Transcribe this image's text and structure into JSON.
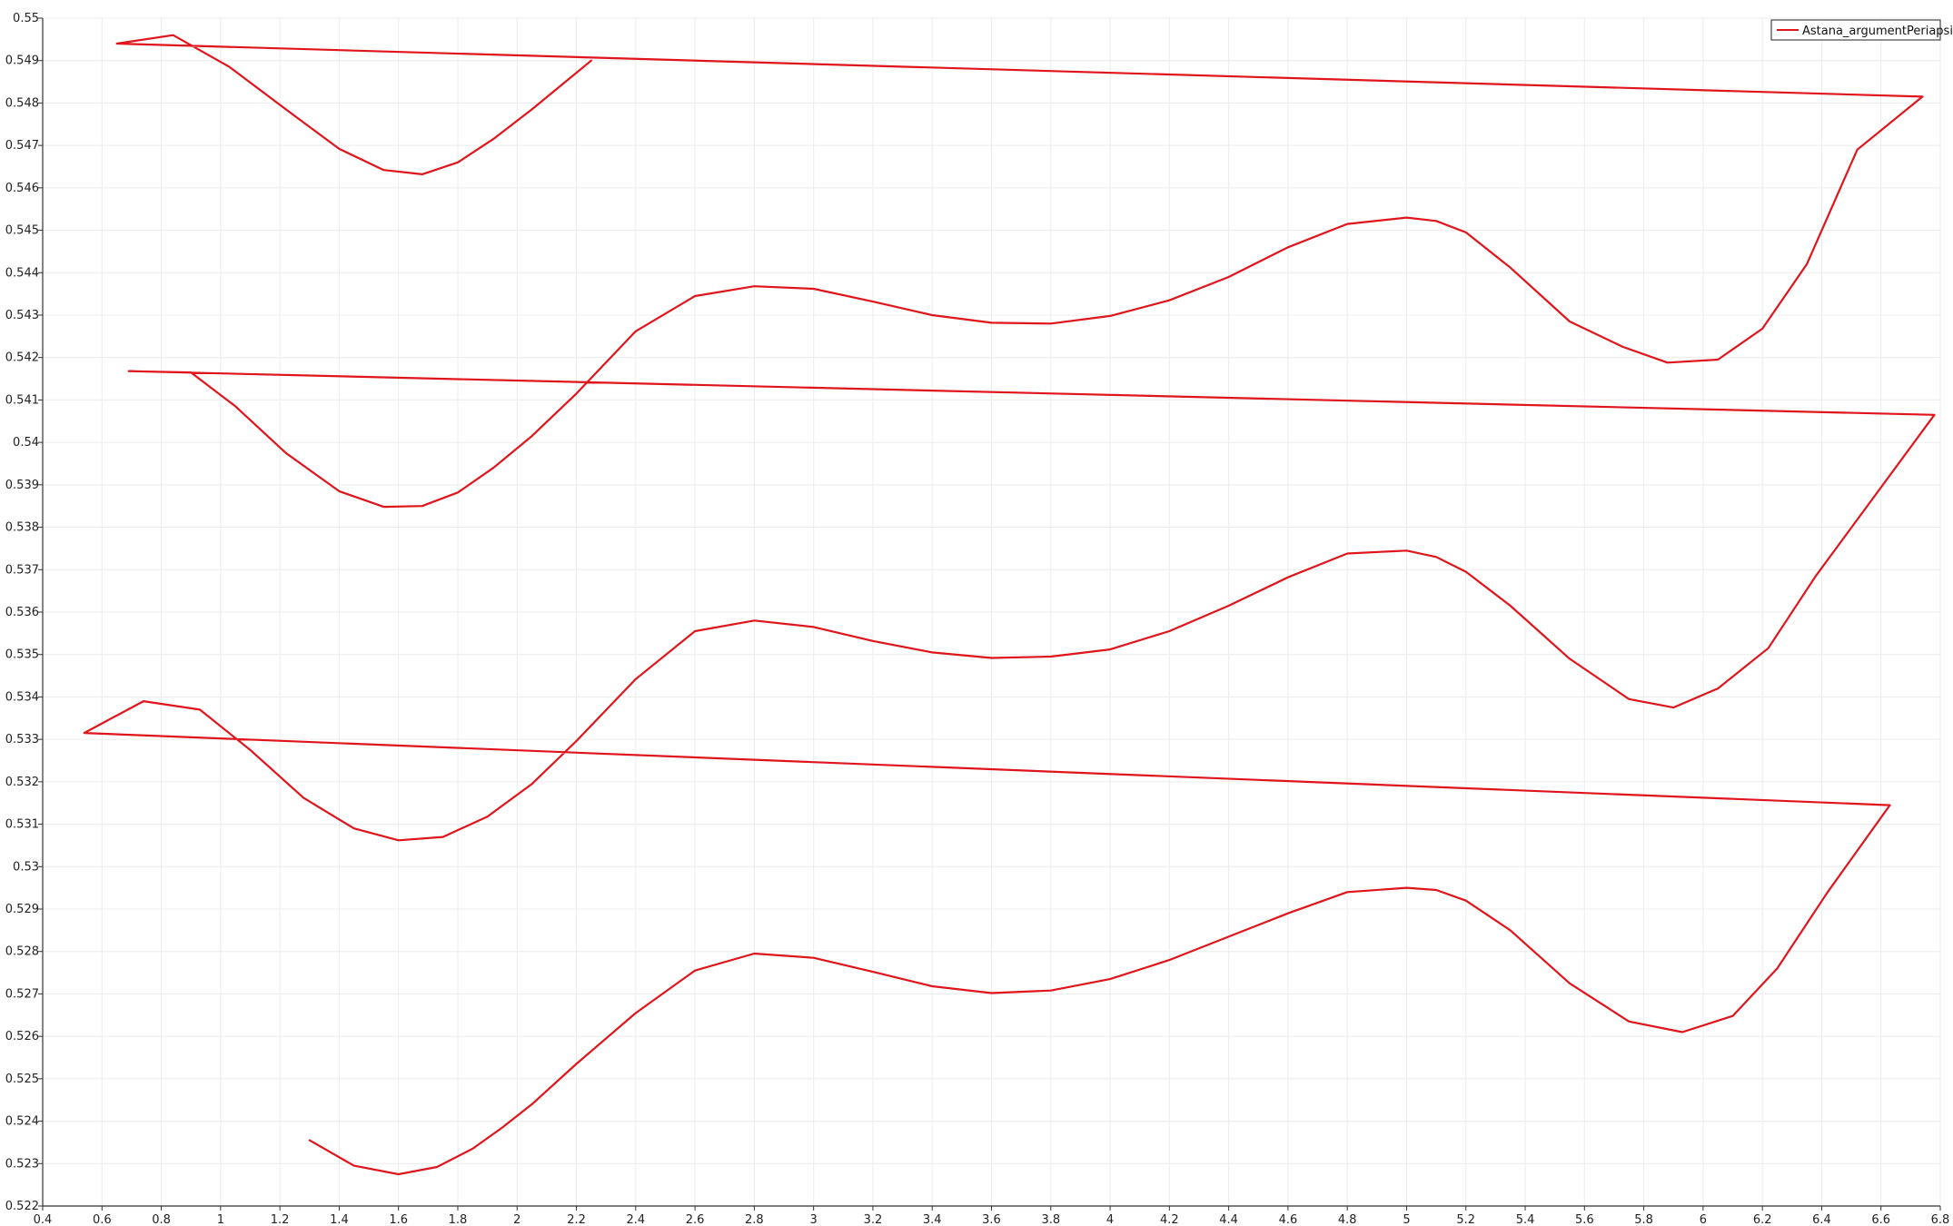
{
  "chart_data": {
    "type": "line",
    "title": "",
    "xlabel": "",
    "ylabel": "",
    "xlim": [
      0.4,
      6.8
    ],
    "ylim": [
      0.522,
      0.55
    ],
    "grid": true,
    "legend": {
      "position": "top-right"
    },
    "x_ticks": [
      "0.4",
      "0.6",
      "0.8",
      "1",
      "1.2",
      "1.4",
      "1.6",
      "1.8",
      "2",
      "2.2",
      "2.4",
      "2.6",
      "2.8",
      "3",
      "3.2",
      "3.4",
      "3.6",
      "3.8",
      "4",
      "4.2",
      "4.4",
      "4.6",
      "4.8",
      "5",
      "5.2",
      "5.4",
      "5.6",
      "5.8",
      "6",
      "6.2",
      "6.4",
      "6.6",
      "6.8"
    ],
    "y_ticks": [
      "0.522",
      "0.523",
      "0.524",
      "0.525",
      "0.526",
      "0.527",
      "0.528",
      "0.529",
      "0.53",
      "0.531",
      "0.532",
      "0.533",
      "0.534",
      "0.535",
      "0.536",
      "0.537",
      "0.538",
      "0.539",
      "0.54",
      "0.541",
      "0.542",
      "0.543",
      "0.544",
      "0.545",
      "0.546",
      "0.547",
      "0.548",
      "0.549",
      "0.55"
    ],
    "colors": {
      "series": "#e0151b",
      "grid": "#ececec",
      "axis": "#333333"
    },
    "series": [
      {
        "name": "Astana_argumentPeriapsis",
        "x": [
          1.3,
          1.45,
          1.6,
          1.73,
          1.85,
          1.95,
          2.05,
          2.2,
          2.4,
          2.6,
          2.8,
          3.0,
          3.2,
          3.4,
          3.6,
          3.8,
          4.0,
          4.2,
          4.4,
          4.6,
          4.8,
          5.0,
          5.1,
          5.2,
          5.35,
          5.55,
          5.75,
          5.93,
          6.1,
          6.25,
          6.42,
          6.63,
          0.54,
          0.74,
          0.93,
          1.1,
          1.28,
          1.45,
          1.6,
          1.75,
          1.9,
          2.05,
          2.2,
          2.4,
          2.6,
          2.8,
          3.0,
          3.2,
          3.4,
          3.6,
          3.8,
          4.0,
          4.2,
          4.4,
          4.6,
          4.8,
          5.0,
          5.1,
          5.2,
          5.35,
          5.55,
          5.75,
          5.9,
          6.05,
          6.22,
          6.38,
          6.78,
          0.69,
          0.9,
          1.05,
          1.22,
          1.4,
          1.55,
          1.68,
          1.8,
          1.92,
          2.05,
          2.2,
          2.4,
          2.6,
          2.8,
          3.0,
          3.2,
          3.4,
          3.6,
          3.8,
          4.0,
          4.2,
          4.4,
          4.6,
          4.8,
          5.0,
          5.1,
          5.2,
          5.35,
          5.55,
          5.73,
          5.88,
          6.05,
          6.2,
          6.35,
          6.52,
          6.74,
          0.65,
          0.84,
          1.03,
          1.22,
          1.4,
          1.55,
          1.68,
          1.8,
          1.92,
          2.05,
          2.25
        ],
        "y": [
          0.52355,
          0.52295,
          0.52275,
          0.52292,
          0.52335,
          0.52385,
          0.5244,
          0.52535,
          0.52655,
          0.52755,
          0.52795,
          0.52785,
          0.52752,
          0.52718,
          0.52702,
          0.52708,
          0.52735,
          0.5278,
          0.52835,
          0.5289,
          0.5294,
          0.5295,
          0.52945,
          0.5292,
          0.5285,
          0.52725,
          0.52635,
          0.5261,
          0.52648,
          0.5276,
          0.5294,
          0.53145,
          0.53315,
          0.5339,
          0.5337,
          0.53275,
          0.53162,
          0.5309,
          0.53062,
          0.5307,
          0.53118,
          0.53195,
          0.53296,
          0.53442,
          0.53555,
          0.5358,
          0.53565,
          0.53532,
          0.53505,
          0.53492,
          0.53495,
          0.53512,
          0.53555,
          0.53615,
          0.53682,
          0.53738,
          0.53745,
          0.5373,
          0.53695,
          0.53615,
          0.5349,
          0.53395,
          0.53375,
          0.5342,
          0.53515,
          0.53685,
          0.54065,
          0.54168,
          0.54165,
          0.54085,
          0.53975,
          0.53885,
          0.53848,
          0.5385,
          0.53882,
          0.5394,
          0.54015,
          0.54115,
          0.54262,
          0.54345,
          0.54368,
          0.54362,
          0.54332,
          0.543,
          0.54282,
          0.5428,
          0.54298,
          0.54335,
          0.5439,
          0.5446,
          0.54515,
          0.5453,
          0.54522,
          0.54495,
          0.54412,
          0.54285,
          0.54225,
          0.54188,
          0.54195,
          0.54268,
          0.5442,
          0.5469,
          0.54815,
          0.5494,
          0.5496,
          0.54885,
          0.54785,
          0.54692,
          0.54642,
          0.54632,
          0.5466,
          0.54715,
          0.54785,
          0.549
        ]
      }
    ]
  }
}
